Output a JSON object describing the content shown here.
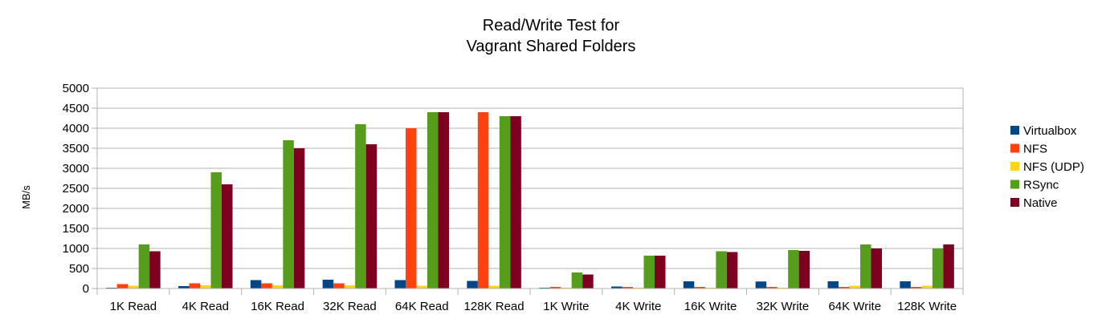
{
  "chart_data": {
    "type": "bar",
    "title": [
      "Read/Write Test for",
      "Vagrant Shared Folders"
    ],
    "xlabel": "",
    "ylabel": "MB/s",
    "ylim": [
      0,
      5000
    ],
    "yticks": [
      0,
      500,
      1000,
      1500,
      2000,
      2500,
      3000,
      3500,
      4000,
      4500,
      5000
    ],
    "grid": true,
    "legend_position": "right",
    "categories": [
      "1K Read",
      "4K Read",
      "16K Read",
      "32K Read",
      "64K Read",
      "128K Read",
      "1K Write",
      "4K Write",
      "16K Write",
      "32K Write",
      "64K Write",
      "128K Write"
    ],
    "series": [
      {
        "name": "Virtualbox",
        "color": "#004586",
        "values": [
          20,
          60,
          210,
          220,
          210,
          190,
          20,
          50,
          180,
          175,
          180,
          180
        ]
      },
      {
        "name": "NFS",
        "color": "#ff420e",
        "values": [
          110,
          130,
          130,
          130,
          4000,
          4400,
          40,
          40,
          40,
          40,
          40,
          40
        ]
      },
      {
        "name": "NFS (UDP)",
        "color": "#ffd320",
        "values": [
          70,
          80,
          80,
          80,
          70,
          70,
          20,
          20,
          20,
          20,
          70,
          70
        ]
      },
      {
        "name": "RSync",
        "color": "#579d1c",
        "values": [
          1100,
          2900,
          3700,
          4100,
          4400,
          4300,
          400,
          820,
          930,
          960,
          1100,
          1000
        ]
      },
      {
        "name": "Native",
        "color": "#7e0021",
        "values": [
          930,
          2600,
          3500,
          3600,
          4400,
          4300,
          350,
          820,
          910,
          940,
          1000,
          1100
        ]
      }
    ]
  }
}
